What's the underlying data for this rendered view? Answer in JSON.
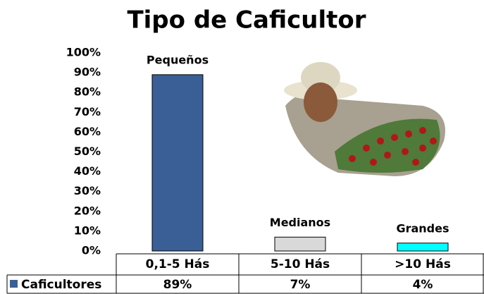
{
  "chart_data": {
    "type": "bar",
    "title": "Tipo de Caficultor",
    "categories": [
      "0,1-5 Hás",
      "5-10 Hás",
      ">10 Hás"
    ],
    "bar_labels": [
      "Pequeños",
      "Medianos",
      "Grandes"
    ],
    "series": [
      {
        "name": "Caficultores",
        "color": "#3a5f96",
        "colors": [
          "#3a5f96",
          "#d9d9d9",
          "#00ffff"
        ],
        "values": [
          89,
          7,
          4
        ],
        "value_labels": [
          "89%",
          "7%",
          "4%"
        ]
      }
    ],
    "ylim": [
      0,
      100
    ],
    "yticks": [
      {
        "value": 0,
        "label": "0%"
      },
      {
        "value": 10,
        "label": "10%"
      },
      {
        "value": 20,
        "label": "20%"
      },
      {
        "value": 30,
        "label": "30%"
      },
      {
        "value": 40,
        "label": "40%"
      },
      {
        "value": 50,
        "label": "50%"
      },
      {
        "value": 60,
        "label": "60%"
      },
      {
        "value": 70,
        "label": "70%"
      },
      {
        "value": 80,
        "label": "80%"
      },
      {
        "value": 90,
        "label": "90%"
      },
      {
        "value": 100,
        "label": "100%"
      }
    ],
    "grid": false
  }
}
